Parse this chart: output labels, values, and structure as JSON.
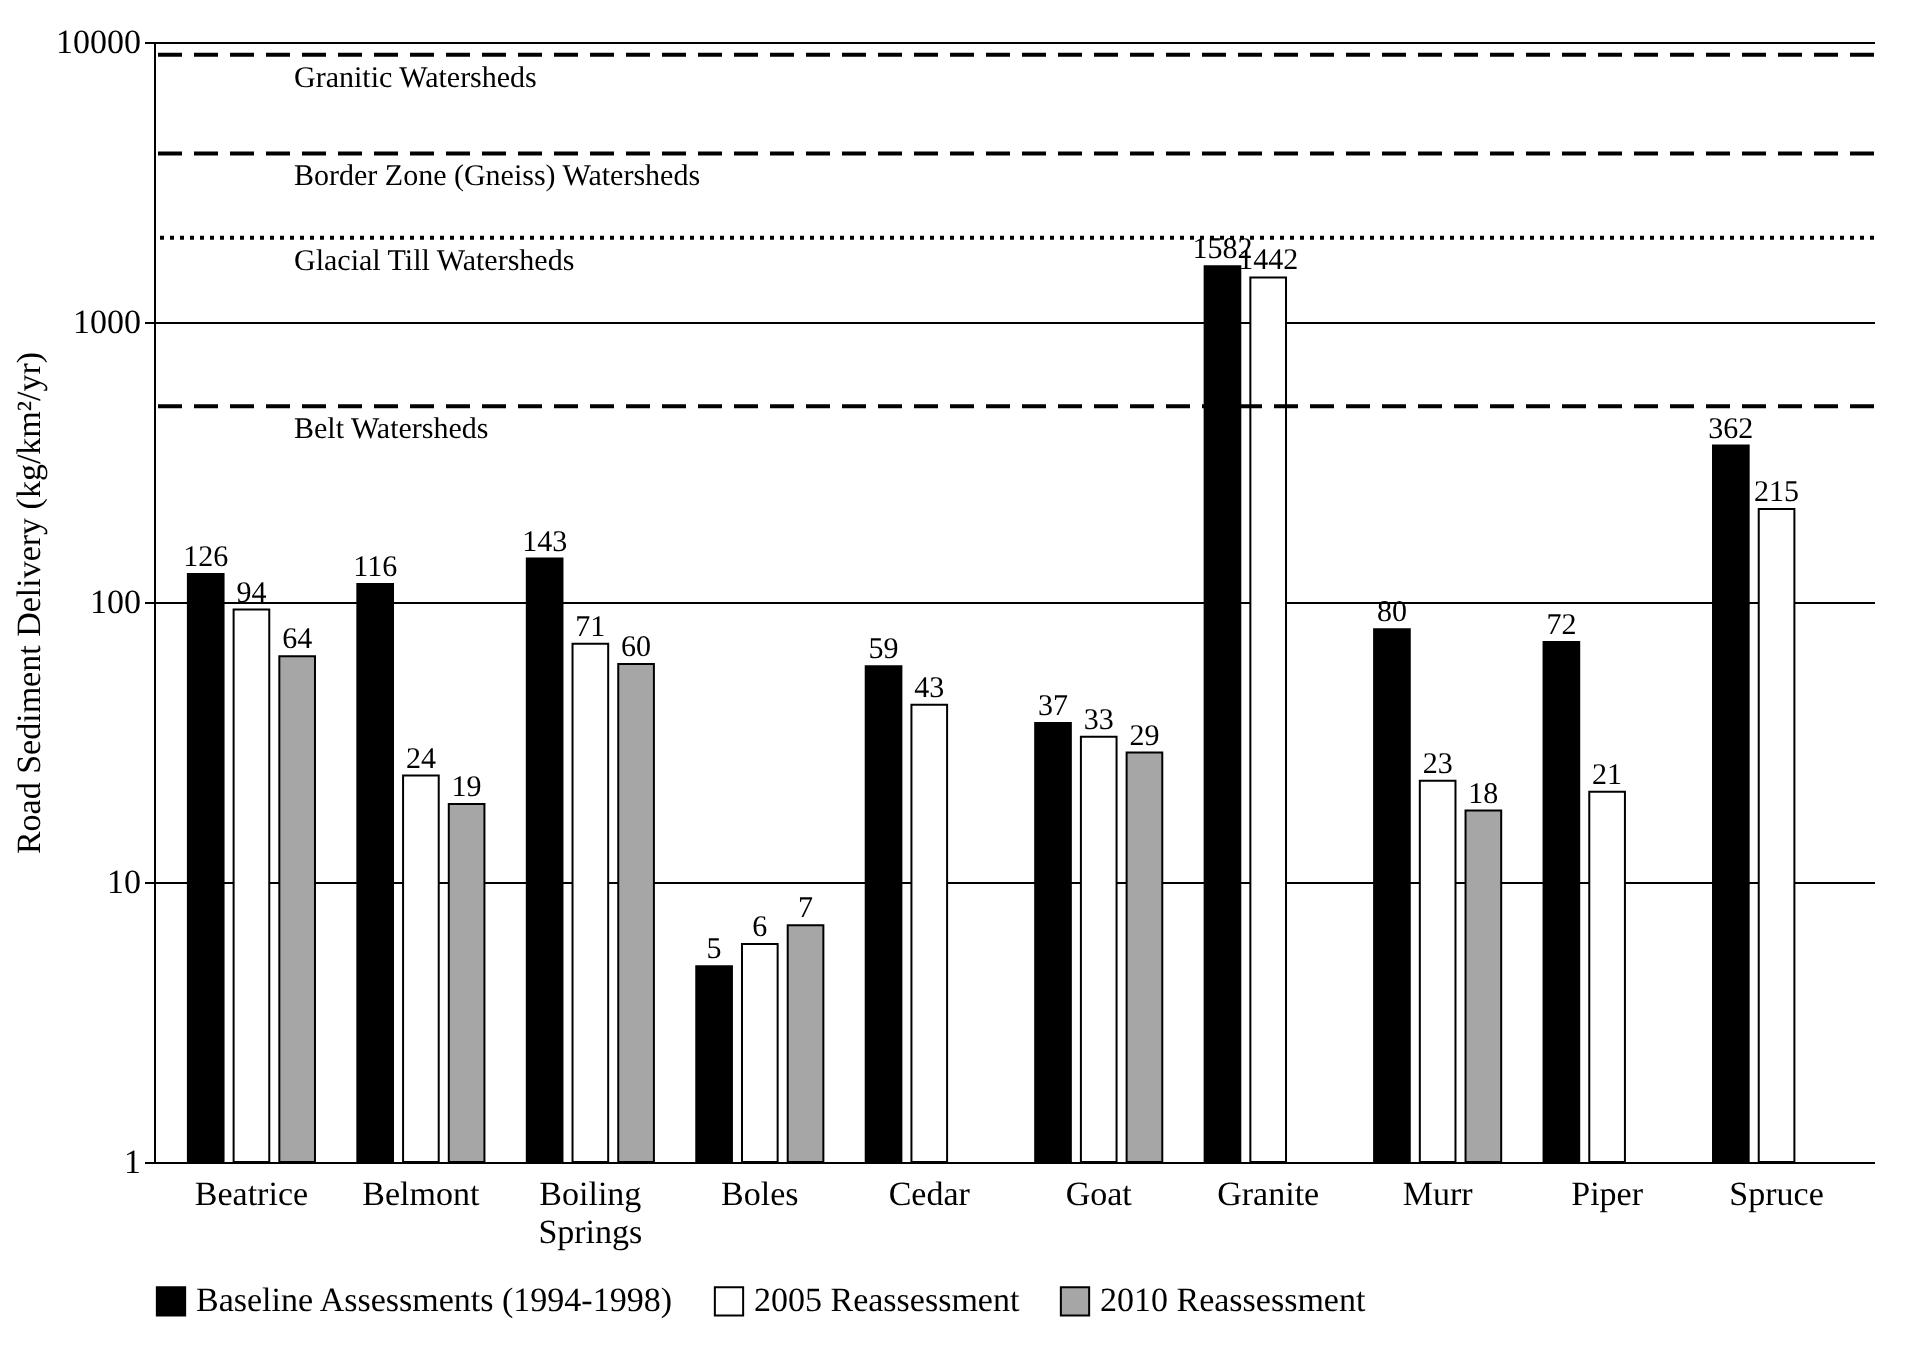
{
  "chart_data": {
    "type": "bar",
    "ylabel": "Road Sediment Delivery (kg/km²/yr)",
    "categories": [
      "Beatrice",
      "Belmont",
      "Boiling Springs",
      "Boles",
      "Cedar",
      "Goat",
      "Granite",
      "Murr",
      "Piper",
      "Spruce"
    ],
    "series": [
      {
        "name": "Baseline Assessments (1994-1998)",
        "color": "#000000",
        "values": [
          126,
          116,
          143,
          5,
          59,
          37,
          1582,
          80,
          72,
          362
        ]
      },
      {
        "name": "2005 Reassessment",
        "color": "#ffffff",
        "values": [
          94,
          24,
          71,
          6,
          43,
          33,
          1442,
          23,
          21,
          215
        ]
      },
      {
        "name": "2010 Reassessment",
        "color": "#a6a6a6",
        "values": [
          64,
          19,
          60,
          7,
          null,
          29,
          null,
          18,
          null,
          null
        ]
      }
    ],
    "log": "y",
    "ylim": [
      1,
      10000
    ],
    "yticks": [
      1,
      10,
      100,
      1000,
      10000
    ],
    "grid": "y",
    "legend": "bottom",
    "data_labels": true,
    "ref_lines": [
      {
        "axis": "y",
        "value": 9000,
        "label": "Granitic Watersheds",
        "line_style": "dashed"
      },
      {
        "axis": "y",
        "value": 4000,
        "label": "Border Zone (Gneiss)  Watersheds",
        "line_style": "dashed"
      },
      {
        "axis": "y",
        "value": 2000,
        "label": "Glacial Till  Watersheds",
        "line_style": "dotted"
      },
      {
        "axis": "y",
        "value": 500,
        "label": "Belt Watersheds",
        "line_style": "dashed"
      }
    ]
  }
}
